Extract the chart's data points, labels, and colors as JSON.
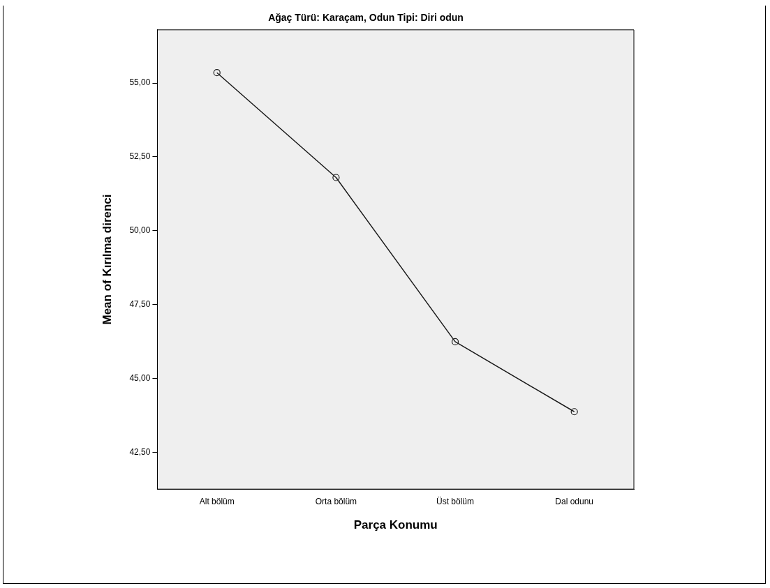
{
  "chart_data": {
    "type": "line",
    "title": "Ağaç Türü: Karaçam, Odun Tipi: Diri odun",
    "xlabel": "Parça Konumu",
    "ylabel": "Mean of Kırılma direnci",
    "categories": [
      "Alt bölüm",
      "Orta bölüm",
      "Üst bölüm",
      "Dal odunu"
    ],
    "series": [
      {
        "color": "#1a1a1a",
        "values": [
          55.35,
          51.8,
          46.24,
          43.87
        ]
      }
    ],
    "ylim": [
      41.25,
      56.8
    ],
    "yticks": [
      {
        "value": 42.5,
        "label": "42,50"
      },
      {
        "value": 45,
        "label": "45,00"
      },
      {
        "value": 47.5,
        "label": "47,50"
      },
      {
        "value": 50,
        "label": "50,00"
      },
      {
        "value": 52.5,
        "label": "52,50"
      },
      {
        "value": 55,
        "label": "55,00"
      }
    ],
    "marker": "circle",
    "line_style": "solid"
  }
}
